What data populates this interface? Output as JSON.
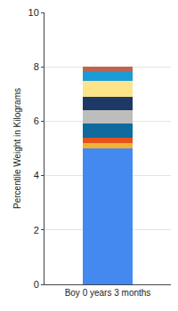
{
  "chart_data": {
    "type": "bar",
    "y_label": "Percentile Weight in Kilograms",
    "categories": [
      "Boy 0 years 3 months"
    ],
    "stacked": true,
    "series": [
      {
        "color": "#4489f0",
        "values": [
          5.0
        ]
      },
      {
        "color": "#f2b134",
        "values": [
          0.2
        ]
      },
      {
        "color": "#e5521c",
        "values": [
          0.2
        ]
      },
      {
        "color": "#0f6b9c",
        "values": [
          0.5
        ]
      },
      {
        "color": "#bdbdbd",
        "values": [
          0.5
        ]
      },
      {
        "color": "#1e3966",
        "values": [
          0.5
        ]
      },
      {
        "color": "#fde38a",
        "values": [
          0.6
        ]
      },
      {
        "color": "#1b9bd8",
        "values": [
          0.3
        ]
      },
      {
        "color": "#c2634d",
        "values": [
          0.2
        ]
      }
    ],
    "ylim": [
      0,
      10
    ],
    "yticks": [
      0,
      2,
      4,
      6,
      8,
      10
    ],
    "grid": true
  }
}
